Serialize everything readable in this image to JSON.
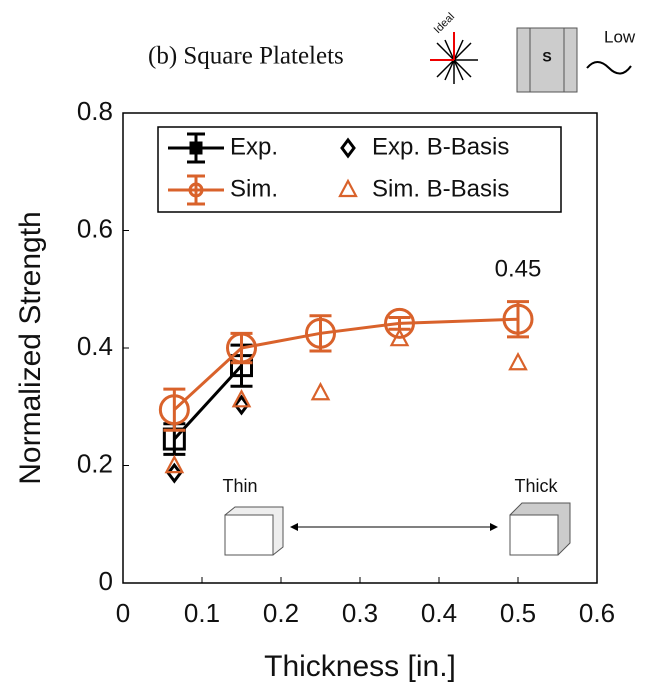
{
  "header": {
    "ideal": "Ideal",
    "s": "S",
    "low": "Low"
  },
  "chart_data": {
    "type": "line",
    "title": "(b) Square Platelets",
    "x_label": "Thickness [in.]",
    "y_label": "Normalized Strength",
    "xlim": [
      0,
      0.6
    ],
    "xticks": [
      0,
      0.1,
      0.2,
      0.3,
      0.4,
      0.5,
      0.6
    ],
    "ylim": [
      0,
      0.8
    ],
    "yticks": [
      0,
      0.2,
      0.4,
      0.6,
      0.8
    ],
    "series": [
      {
        "name": "Exp.",
        "color": "#000000",
        "marker": "square",
        "line": true,
        "x": [
          0.065,
          0.15
        ],
        "values": [
          0.245,
          0.37
        ],
        "errors": [
          0.026,
          0.035
        ]
      },
      {
        "name": "Sim.",
        "color": "#d9622b",
        "marker": "circle",
        "line": true,
        "x": [
          0.065,
          0.15,
          0.25,
          0.35,
          0.5
        ],
        "values": [
          0.295,
          0.4,
          0.425,
          0.442,
          0.449
        ],
        "errors": [
          0.035,
          0.025,
          0.03,
          0.01,
          0.03
        ]
      },
      {
        "name": "Exp. B-Basis",
        "color": "#000000",
        "marker": "diamond",
        "line": false,
        "x": [
          0.065,
          0.15
        ],
        "values": [
          0.187,
          0.303
        ]
      },
      {
        "name": "Sim. B-Basis",
        "color": "#d9622b",
        "marker": "triangle",
        "line": false,
        "x": [
          0.065,
          0.15,
          0.25,
          0.35,
          0.5
        ],
        "values": [
          0.199,
          0.311,
          0.323,
          0.415,
          0.374
        ]
      }
    ],
    "annotations": [
      {
        "text": "0.45"
      },
      {
        "text": "Thin"
      },
      {
        "text": "Thick"
      }
    ]
  }
}
